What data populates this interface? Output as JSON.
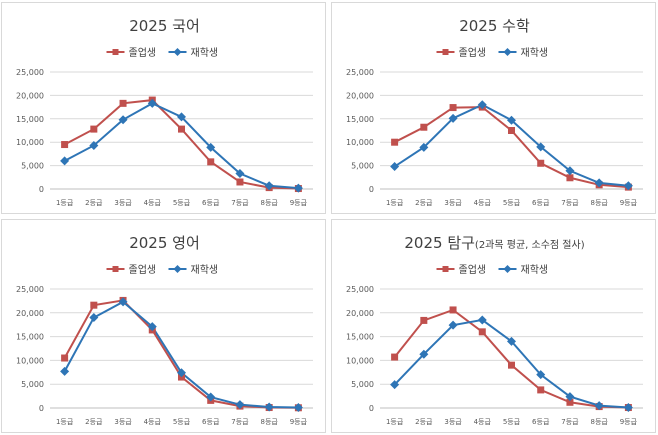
{
  "colors": {
    "series1": "#c0504d",
    "series1_stroke": "#a5282a",
    "series2": "#2e75b6",
    "grid": "#d9d9d9",
    "axis": "#bfbfbf"
  },
  "chart_data": [
    {
      "type": "line",
      "title": "2025 국어",
      "title_note": "",
      "categories": [
        "1등급",
        "2등급",
        "3등급",
        "4등급",
        "5등급",
        "6등급",
        "7등급",
        "8등급",
        "9등급"
      ],
      "series": [
        {
          "name": "졸업생",
          "marker": "square",
          "values": [
            9500,
            12800,
            18300,
            19000,
            12800,
            5800,
            1500,
            300,
            100
          ]
        },
        {
          "name": "재학생",
          "marker": "diamond",
          "values": [
            6000,
            9300,
            14800,
            18300,
            15400,
            8900,
            3300,
            700,
            200
          ]
        }
      ],
      "ylim": [
        0,
        25000
      ],
      "yticks": [
        "0",
        "5,000",
        "10,000",
        "15,000",
        "20,000",
        "25,000"
      ],
      "legend": "top",
      "grid": true
    },
    {
      "type": "line",
      "title": "2025 수학",
      "title_note": "",
      "categories": [
        "1등급",
        "2등급",
        "3등급",
        "4등급",
        "5등급",
        "6등급",
        "7등급",
        "8등급",
        "9등급"
      ],
      "series": [
        {
          "name": "졸업생",
          "marker": "square",
          "values": [
            10000,
            13200,
            17400,
            17500,
            12500,
            5500,
            2400,
            900,
            400
          ]
        },
        {
          "name": "재학생",
          "marker": "diamond",
          "values": [
            4800,
            8900,
            15100,
            18000,
            14700,
            9000,
            3900,
            1300,
            700
          ]
        }
      ],
      "ylim": [
        0,
        25000
      ],
      "yticks": [
        "0",
        "5,000",
        "10,000",
        "15,000",
        "20,000",
        "25,000"
      ],
      "legend": "top",
      "grid": true
    },
    {
      "type": "line",
      "title": "2025 영어",
      "title_note": "",
      "categories": [
        "1등급",
        "2등급",
        "3등급",
        "4등급",
        "5등급",
        "6등급",
        "7등급",
        "8등급",
        "9등급"
      ],
      "series": [
        {
          "name": "졸업생",
          "marker": "square",
          "values": [
            10500,
            21600,
            22600,
            16400,
            6500,
            1600,
            400,
            100,
            50
          ]
        },
        {
          "name": "재학생",
          "marker": "diamond",
          "values": [
            7700,
            19000,
            22300,
            17100,
            7400,
            2300,
            700,
            200,
            100
          ]
        }
      ],
      "ylim": [
        0,
        25000
      ],
      "yticks": [
        "0",
        "5,000",
        "10,000",
        "15,000",
        "20,000",
        "25,000"
      ],
      "legend": "top",
      "grid": true
    },
    {
      "type": "line",
      "title": "2025 탐구",
      "title_note": "(2과목 평균, 소수점 절사)",
      "categories": [
        "1등급",
        "2등급",
        "3등급",
        "4등급",
        "5등급",
        "6등급",
        "7등급",
        "8등급",
        "9등급"
      ],
      "series": [
        {
          "name": "졸업생",
          "marker": "square",
          "values": [
            10700,
            18400,
            20600,
            16000,
            9000,
            3800,
            1200,
            300,
            100
          ]
        },
        {
          "name": "재학생",
          "marker": "diamond",
          "values": [
            4900,
            11300,
            17400,
            18500,
            14000,
            7000,
            2400,
            500,
            100
          ]
        }
      ],
      "ylim": [
        0,
        25000
      ],
      "yticks": [
        "0",
        "5,000",
        "10,000",
        "15,000",
        "20,000",
        "25,000"
      ],
      "legend": "top",
      "grid": true
    }
  ]
}
